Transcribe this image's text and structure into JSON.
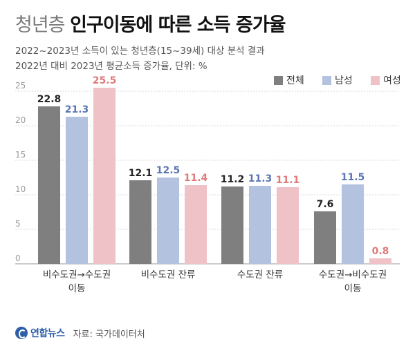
{
  "header": {
    "title_light": "청년층",
    "title_bold": "인구이동에 따른 소득 증가율",
    "subtitle1": "2022~2023년 소득이 있는 청년층(15~39세) 대상 분석 결과",
    "subtitle2": "2022년 대비 2023년 평균소득 증가율, 단위: %"
  },
  "footer": {
    "logo": "연합뉴스",
    "source": "자료: 국가데이터처"
  },
  "chart_data": {
    "type": "bar",
    "title": "인구이동에 따른 소득 증가율",
    "categories": [
      [
        "비수도권→수도권",
        "이동"
      ],
      [
        "비수도권 잔류"
      ],
      [
        "수도권 잔류"
      ],
      [
        "수도권→비수도권",
        "이동"
      ]
    ],
    "series": [
      {
        "name": "전체",
        "values": [
          22.8,
          12.1,
          11.2,
          7.6
        ],
        "color": "#7f7f7f",
        "label_color": "#222222"
      },
      {
        "name": "남성",
        "values": [
          21.3,
          12.5,
          11.3,
          11.5
        ],
        "color": "#b3c2df",
        "label_color": "#5b77b3"
      },
      {
        "name": "여성",
        "values": [
          25.5,
          11.4,
          11.1,
          0.8
        ],
        "color": "#efc2c8",
        "label_color": "#e07a7a"
      }
    ],
    "yticks": [
      0,
      5,
      10,
      15,
      20,
      25
    ],
    "ylim": [
      0,
      25.5
    ],
    "grid": true,
    "legend": "top-right"
  }
}
